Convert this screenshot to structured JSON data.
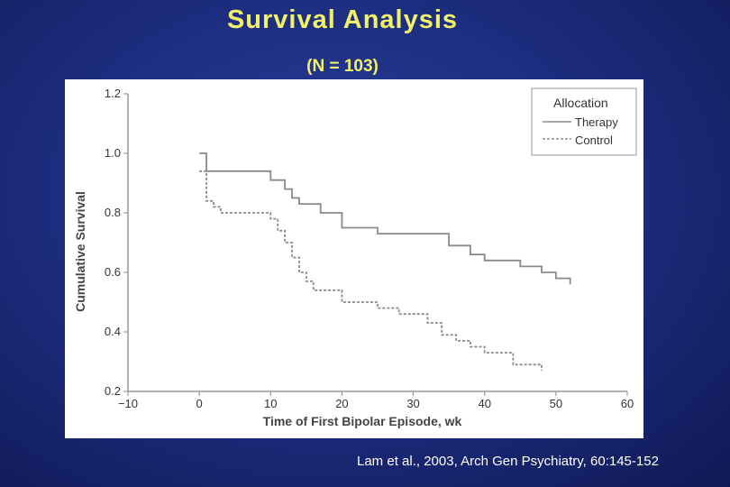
{
  "slide": {
    "title": "Survival Analysis",
    "subtitle": "(N = 103)",
    "citation": "Lam et al., 2003, Arch Gen Psychiatry,  60:145-152"
  },
  "chart_data": {
    "type": "line",
    "step": true,
    "xlabel": "Time of First Bipolar Episode, wk",
    "ylabel": "Cumulative Survival",
    "xlim": [
      -10,
      60
    ],
    "ylim": [
      0.2,
      1.2
    ],
    "xticks": [
      "−10",
      "0",
      "10",
      "20",
      "30",
      "40",
      "50",
      "60"
    ],
    "yticks": [
      "0.2",
      "0.4",
      "0.6",
      "0.8",
      "1.0",
      "1.2"
    ],
    "legend": {
      "title": "Allocation",
      "placement": "top-right"
    },
    "series": [
      {
        "name": "Therapy",
        "style": "solid",
        "color": "#8a8a8a",
        "x": [
          0,
          1,
          7,
          10,
          12,
          13,
          14,
          17,
          20,
          25,
          35,
          38,
          40,
          45,
          47,
          48,
          50,
          52
        ],
        "y": [
          1.0,
          0.94,
          0.94,
          0.91,
          0.88,
          0.85,
          0.83,
          0.8,
          0.75,
          0.73,
          0.69,
          0.66,
          0.64,
          0.62,
          0.62,
          0.6,
          0.58,
          0.56
        ]
      },
      {
        "name": "Control",
        "style": "dashed",
        "color": "#8a8a8a",
        "x": [
          0,
          1,
          2,
          3,
          10,
          11,
          12,
          13,
          14,
          15,
          16,
          20,
          25,
          28,
          32,
          34,
          36,
          38,
          40,
          44,
          48
        ],
        "y": [
          0.94,
          0.84,
          0.82,
          0.8,
          0.78,
          0.74,
          0.7,
          0.65,
          0.6,
          0.57,
          0.54,
          0.5,
          0.48,
          0.46,
          0.43,
          0.39,
          0.37,
          0.35,
          0.33,
          0.29,
          0.27
        ]
      }
    ]
  }
}
